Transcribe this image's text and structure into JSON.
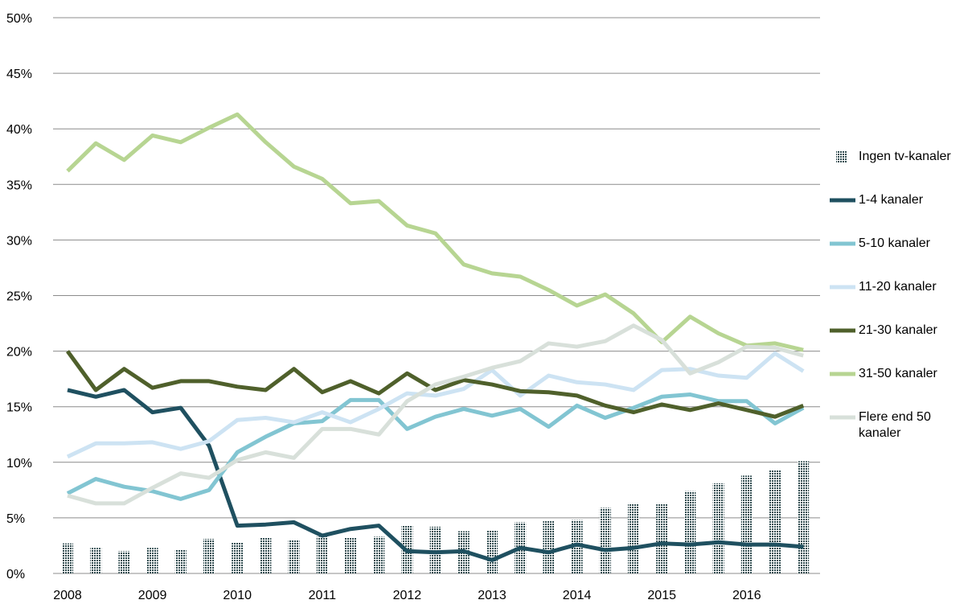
{
  "chart_data": {
    "type": "line",
    "categories": [
      "2008",
      null,
      null,
      "2009",
      null,
      null,
      "2010",
      null,
      null,
      "2011",
      null,
      null,
      "2012",
      null,
      null,
      "2013",
      null,
      null,
      "2014",
      null,
      null,
      "2015",
      null,
      null,
      "2016",
      null,
      null
    ],
    "ylim": [
      0,
      50
    ],
    "yticks": [
      {
        "value": 0,
        "label": "0%"
      },
      {
        "value": 5,
        "label": "5%"
      },
      {
        "value": 10,
        "label": "10%"
      },
      {
        "value": 15,
        "label": "15%"
      },
      {
        "value": 20,
        "label": "20%"
      },
      {
        "value": 25,
        "label": "25%"
      },
      {
        "value": 30,
        "label": "30%"
      },
      {
        "value": 35,
        "label": "35%"
      },
      {
        "value": 40,
        "label": "40%"
      },
      {
        "value": 45,
        "label": "45%"
      },
      {
        "value": 50,
        "label": "50%"
      }
    ],
    "grid": true,
    "legend": "right",
    "series": [
      {
        "name": "Ingen tv-kanaler",
        "type": "bar",
        "color": "#2f4b4f",
        "values": [
          2.7,
          2.3,
          2.0,
          2.3,
          2.1,
          3.1,
          2.8,
          3.2,
          3.0,
          3.3,
          3.2,
          3.3,
          4.3,
          4.2,
          3.8,
          3.9,
          4.6,
          4.7,
          4.8,
          5.9,
          6.3,
          6.3,
          7.4,
          8.1,
          8.8,
          9.3,
          10.1
        ]
      },
      {
        "name": "1-4 kanaler",
        "color": "#1f5060",
        "values": [
          16.5,
          15.9,
          16.5,
          14.5,
          14.9,
          11.5,
          4.3,
          4.4,
          4.6,
          3.4,
          4.0,
          4.3,
          2.0,
          1.9,
          2.0,
          1.2,
          2.3,
          1.9,
          2.6,
          2.1,
          2.3,
          2.7,
          2.6,
          2.8,
          2.6,
          2.6,
          2.4
        ]
      },
      {
        "name": "5-10 kanaler",
        "color": "#82c5d2",
        "values": [
          7.2,
          8.5,
          7.8,
          7.4,
          6.7,
          7.5,
          10.9,
          12.3,
          13.5,
          13.7,
          15.6,
          15.6,
          13.0,
          14.1,
          14.8,
          14.2,
          14.8,
          13.2,
          15.1,
          14.0,
          14.9,
          15.9,
          16.1,
          15.5,
          15.5,
          13.5,
          14.9
        ]
      },
      {
        "name": "11-20 kanaler",
        "color": "#cde3f3",
        "values": [
          10.5,
          11.7,
          11.7,
          11.8,
          11.2,
          11.9,
          13.8,
          14.0,
          13.6,
          14.5,
          13.6,
          14.8,
          16.2,
          16.0,
          16.6,
          18.3,
          16.0,
          17.8,
          17.2,
          17.0,
          16.5,
          18.3,
          18.4,
          17.8,
          17.6,
          19.8,
          18.2
        ]
      },
      {
        "name": "21-30 kanaler",
        "color": "#4f602b",
        "values": [
          20.0,
          16.5,
          18.4,
          16.7,
          17.3,
          17.3,
          16.8,
          16.5,
          18.4,
          16.3,
          17.3,
          16.2,
          18.0,
          16.5,
          17.4,
          17.0,
          16.4,
          16.3,
          16.0,
          15.1,
          14.5,
          15.2,
          14.7,
          15.3,
          14.7,
          14.1,
          15.1
        ]
      },
      {
        "name": "31-50 kanaler",
        "color": "#b7d592",
        "values": [
          36.2,
          38.7,
          37.2,
          39.4,
          38.8,
          40.1,
          41.3,
          38.8,
          36.6,
          35.5,
          33.3,
          33.5,
          31.3,
          30.6,
          27.8,
          27.0,
          26.7,
          25.5,
          24.1,
          25.1,
          23.4,
          20.8,
          23.1,
          21.6,
          20.5,
          20.7,
          20.1
        ]
      },
      {
        "name": "Flere end 50 kanaler",
        "color": "#d8e0da",
        "values": [
          7.0,
          6.3,
          6.3,
          7.7,
          9.0,
          8.6,
          10.2,
          10.9,
          10.4,
          13.0,
          13.0,
          12.5,
          15.5,
          17.0,
          17.7,
          18.5,
          19.1,
          20.7,
          20.4,
          20.9,
          22.3,
          21.0,
          18.0,
          19.0,
          20.4,
          20.3,
          19.6
        ]
      }
    ]
  }
}
